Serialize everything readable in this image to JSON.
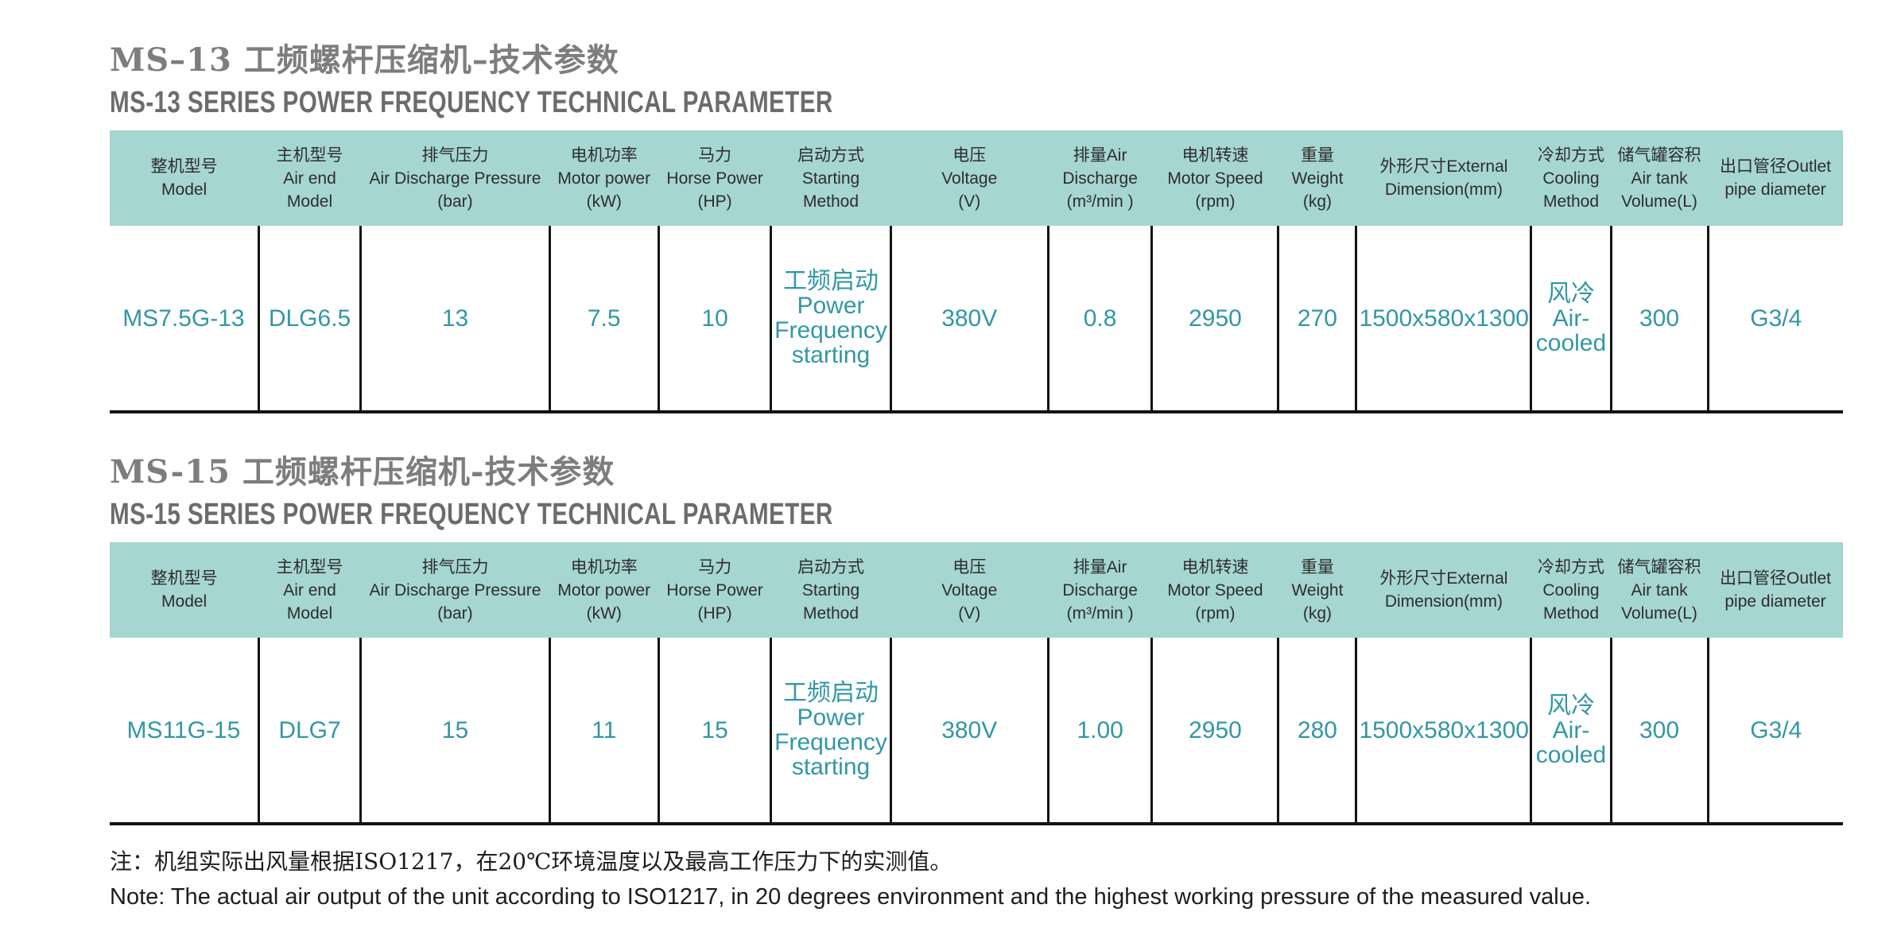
{
  "document": {
    "sections": [
      {
        "id": "ms13",
        "title_zh": "MS–13 工频螺杆压缩机–技术参数",
        "title_en": "MS-13 SERIES POWER FREQUENCY TECHNICAL PARAMETER",
        "row": [
          "MS7.5G-13",
          "DLG6.5",
          "13",
          "7.5",
          "10",
          "工频启动\nPower\nFrequency\nstarting",
          "380V",
          "0.8",
          "2950",
          "270",
          "1500x580x1300",
          "风冷\nAir-\ncooled",
          "300",
          "G3/4"
        ]
      },
      {
        "id": "ms15",
        "title_zh": "MS-15 工频螺杆压缩机-技术参数",
        "title_en": "MS-15 SERIES POWER FREQUENCY TECHNICAL PARAMETER",
        "row": [
          "MS11G-15",
          "DLG7",
          "15",
          "11",
          "15",
          "工频启动\nPower\nFrequency\nstarting",
          "380V",
          "1.00",
          "2950",
          "280",
          "1500x580x1300",
          "风冷\nAir-\ncooled",
          "300",
          "G3/4"
        ]
      }
    ],
    "column_headers": [
      "整机型号\nModel",
      "主机型号\nAir end\nModel",
      "排气压力\nAir Discharge Pressure\n(bar)",
      "电机功率\nMotor power\n(kW)",
      "马力\nHorse Power\n(HP)",
      "启动方式\nStarting\nMethod",
      "电压\nVoltage\n(V)",
      "排量Air\nDischarge\n(m³/min )",
      "电机转速\nMotor Speed\n(rpm)",
      "重量\nWeight\n(kg)",
      "外形尺寸External\nDimension(mm)",
      "冷却方式\nCooling\nMethod",
      "储气罐容积\nAir tank\nVolume(L)",
      "出口管径Outlet\npipe diameter"
    ],
    "notes": {
      "zh": "注：机组实际出风量根据ISO1217，在20℃环境温度以及最高工作压力下的实测值。",
      "en": "Note: The actual air output of the unit according to ISO1217, in 20 degrees environment and the highest working pressure of the measured value."
    },
    "colors": {
      "header_bg": "#a6d6d1",
      "value_text": "#3297a5",
      "header_text": "#2d2d2d",
      "title_zh_text": "#7c7d7f",
      "title_en_text": "#6b6c6e",
      "grid_line": "#141414"
    }
  }
}
